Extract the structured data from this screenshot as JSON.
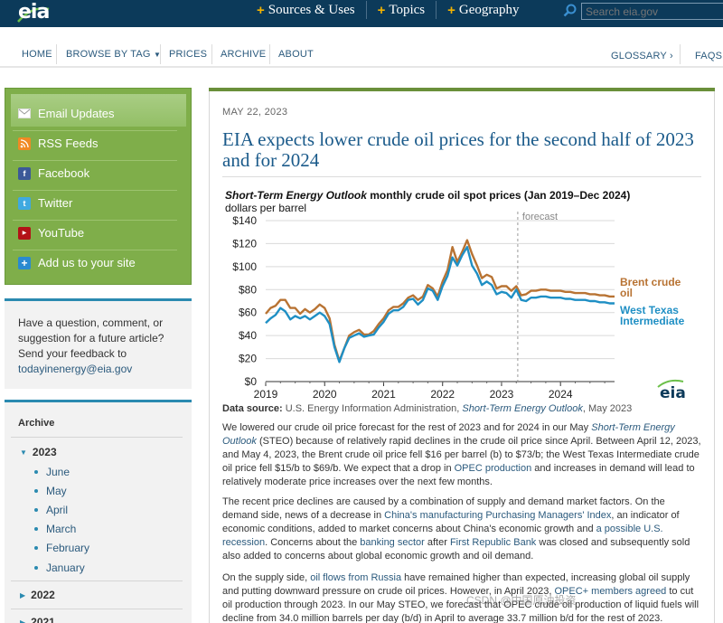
{
  "header": {
    "logo_text": "eia",
    "nav": [
      "Sources & Uses",
      "Topics",
      "Geography"
    ],
    "search_placeholder": "Search eia.gov"
  },
  "secnav": {
    "home": "HOME",
    "browse": "BROWSE BY TAG",
    "prices": "PRICES",
    "archive": "ARCHIVE",
    "about": "ABOUT",
    "glossary": "GLOSSARY ›",
    "faqs": "FAQS"
  },
  "sidebar": {
    "social": [
      {
        "label": "Email Updates"
      },
      {
        "label": "RSS Feeds"
      },
      {
        "label": "Facebook"
      },
      {
        "label": "Twitter"
      },
      {
        "label": "YouTube"
      },
      {
        "label": "Add us to your site"
      }
    ],
    "feedback_text": "Have a question, comment, or suggestion for a future article? Send your feedback to",
    "feedback_email": "todayinenergy@eia.gov",
    "archive_title": "Archive",
    "years": [
      "2023",
      "2022",
      "2021"
    ],
    "months": [
      "June",
      "May",
      "April",
      "March",
      "February",
      "January"
    ]
  },
  "article": {
    "date": "MAY 22, 2023",
    "headline": "EIA expects lower crude oil prices for the second half of 2023 and for 2024",
    "data_source_label": "Data source:",
    "data_source_text": "U.S. Energy Information Administration,",
    "data_source_pub": "Short-Term Energy Outlook",
    "data_source_date": ", May 2023",
    "p1": {
      "a": "We lowered our crude oil price forecast for the rest of 2023 and for 2024 in our May ",
      "b": "Short-Term Energy Outlook",
      "c": " (STEO) because of relatively rapid declines in the crude oil price since April. Between April 12, 2023, and May 4, 2023, the Brent crude oil price fell $16 per barrel (b) to $73/b; the West Texas Intermediate crude oil price fell $15/b to $69/b. We expect that a drop in ",
      "d": "OPEC production",
      "e": " and increases in demand will lead to relatively moderate price increases over the next few months."
    },
    "p2": {
      "a": "The recent price declines are caused by a combination of supply and demand market factors. On the demand side, news of a decrease in ",
      "b": "China's manufacturing Purchasing Managers' Index",
      "c": ", an indicator of economic conditions, added to market concerns about China's economic growth and ",
      "d": "a possible U.S. recession",
      "e": ". Concerns about the ",
      "f": "banking sector",
      "g": " after ",
      "h": "First Republic Bank",
      "i": " was closed and subsequently sold also added to concerns about global economic growth and oil demand."
    },
    "p3": {
      "a": "On the supply side, ",
      "b": "oil flows from Russia",
      "c": " have remained higher than expected, increasing global oil supply and putting downward pressure on crude oil prices. However, in April 2023, ",
      "d": "OPEC+ members agreed",
      "e": " to cut oil production through 2023. In our May STEO, we forecast that OPEC crude oil production of liquid fuels will decline from 34.0 million barrels per day (b/d) in April to average 33.7 million b/d for the rest of 2023."
    },
    "watermark": "CSDN @中国原油投资"
  },
  "chart_data": {
    "type": "line",
    "title_italic": "Short-Term Energy Outlook",
    "title_rest": " monthly crude oil spot prices (Jan 2019–Dec 2024)",
    "ylabel": "dollars per barrel",
    "ylim": [
      0,
      140
    ],
    "yticks": [
      "$0",
      "$20",
      "$40",
      "$60",
      "$80",
      "$100",
      "$120",
      "$140"
    ],
    "xticks": [
      "2019",
      "2020",
      "2021",
      "2022",
      "2023",
      "2024"
    ],
    "forecast_label": "forecast",
    "forecast_start_month": 52,
    "logo": "eia",
    "colors": {
      "brent": "#b87333",
      "wti": "#1f8fc4"
    },
    "series": [
      {
        "name": "Brent crude oil",
        "legend": [
          "Brent crude",
          "oil"
        ],
        "values": [
          59,
          64,
          66,
          71,
          71,
          64,
          64,
          59,
          63,
          60,
          63,
          67,
          64,
          55,
          32,
          18,
          29,
          40,
          43,
          45,
          41,
          41,
          44,
          50,
          55,
          62,
          65,
          65,
          68,
          73,
          75,
          71,
          74,
          84,
          81,
          74,
          87,
          97,
          117,
          104,
          113,
          123,
          111,
          101,
          90,
          93,
          91,
          81,
          83,
          83,
          79,
          83,
          75,
          76,
          79,
          79,
          80,
          80,
          79,
          79,
          79,
          78,
          78,
          77,
          77,
          77,
          76,
          76,
          75,
          75,
          74,
          74
        ]
      },
      {
        "name": "West Texas Intermediate",
        "legend": [
          "West Texas",
          "Intermediate"
        ],
        "values": [
          51,
          55,
          58,
          64,
          61,
          54,
          57,
          55,
          57,
          54,
          57,
          60,
          57,
          50,
          30,
          17,
          29,
          38,
          40,
          42,
          39,
          40,
          41,
          47,
          52,
          59,
          62,
          62,
          65,
          71,
          72,
          67,
          71,
          81,
          79,
          71,
          83,
          92,
          108,
          101,
          110,
          117,
          101,
          94,
          84,
          87,
          84,
          76,
          78,
          77,
          73,
          80,
          71,
          70,
          73,
          73,
          74,
          74,
          73,
          73,
          73,
          72,
          72,
          71,
          71,
          71,
          70,
          70,
          69,
          69,
          68,
          68
        ]
      }
    ]
  }
}
